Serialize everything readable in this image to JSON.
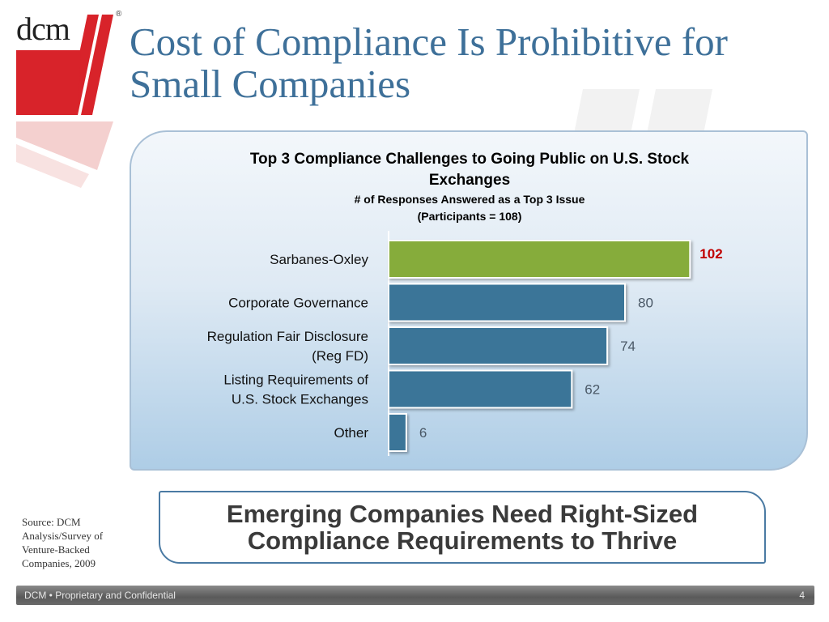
{
  "logo": {
    "text": "dcm",
    "reg": "®"
  },
  "title": "Cost of Compliance Is Prohibitive for Small Companies",
  "chart_data": {
    "type": "bar",
    "orientation": "horizontal",
    "title": "Top 3 Compliance Challenges to Going Public on U.S. Stock Exchanges",
    "subtitle_lines": [
      "# of Responses Answered as a Top 3 Issue",
      "(Participants = 108)"
    ],
    "categories": [
      [
        "Sarbanes-Oxley"
      ],
      [
        "Corporate Governance"
      ],
      [
        "Regulation Fair Disclosure",
        "(Reg FD)"
      ],
      [
        "Listing Requirements of",
        "U.S. Stock Exchanges"
      ],
      [
        "Other"
      ]
    ],
    "values": [
      102,
      80,
      74,
      62,
      6
    ],
    "xlim": [
      0,
      110
    ],
    "highlight_index": 0,
    "colors": {
      "highlight": "#86ac3b",
      "default": "#3b7598",
      "highlight_label": "#c00000",
      "label": "#4a5866"
    },
    "grid": false,
    "legend": "none"
  },
  "callout": "Emerging Companies Need Right-Sized Compliance Requirements to Thrive",
  "source": "Source: DCM Analysis/Survey of Venture-Backed Companies, 2009",
  "footer": {
    "text": "DCM • Proprietary and Confidential",
    "page": "4"
  }
}
